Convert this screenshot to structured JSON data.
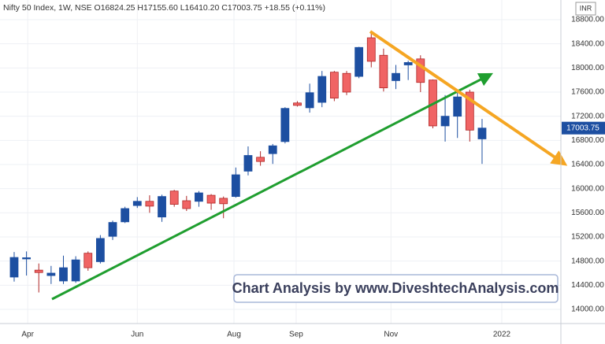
{
  "chart_data": {
    "type": "candlestick",
    "title": "Nifty 50 Index, 1W, NSE  O16824.25  H17155.60  L16410.20  C17003.75  +18.55 (+0.11%)",
    "currency": "INR",
    "annotation": "Chart Analysis by www.DiveshtechAnalysis.com",
    "up_color": "#1d4fa1",
    "down_color": "#f06464",
    "grid": true,
    "last_price": 17003.75,
    "x": [
      0,
      1,
      2,
      3,
      4,
      5,
      6,
      7,
      8,
      9,
      10,
      11,
      12,
      13,
      14,
      15,
      16,
      17,
      18,
      19,
      20,
      21,
      22,
      23,
      24,
      25,
      26,
      27,
      28,
      29,
      30,
      31,
      32,
      33,
      34,
      35,
      36,
      37,
      38
    ],
    "open": [
      14535,
      14850,
      14650,
      14560,
      14470,
      14470,
      14930,
      14790,
      15210,
      15450,
      15720,
      15790,
      15530,
      15960,
      15800,
      15790,
      15890,
      15840,
      15870,
      16290,
      16520,
      16580,
      16780,
      17420,
      17340,
      17430,
      17930,
      17910,
      17860,
      18500,
      18210,
      17790,
      18050,
      18150,
      17800,
      17040,
      17200,
      17600,
      16824.25
    ],
    "high": [
      14950,
      14960,
      14760,
      14720,
      14890,
      14880,
      14960,
      15230,
      15470,
      15700,
      15860,
      15890,
      15900,
      15980,
      15880,
      15960,
      15910,
      15870,
      16350,
      16700,
      16620,
      16740,
      17350,
      17450,
      17740,
      17950,
      17950,
      17950,
      18350,
      18600,
      18320,
      18050,
      18120,
      18210,
      17810,
      17550,
      17640,
      17640,
      17155.6
    ],
    "low": [
      14460,
      14560,
      14280,
      14420,
      14420,
      14440,
      14640,
      14760,
      15150,
      15430,
      15680,
      15600,
      15450,
      15700,
      15630,
      15700,
      15650,
      15510,
      15850,
      16220,
      16380,
      16410,
      16750,
      17360,
      17260,
      17350,
      17450,
      17550,
      17830,
      18010,
      17610,
      17650,
      17800,
      17600,
      17000,
      16780,
      16840,
      16780,
      16410.2
    ],
    "close": [
      14860,
      14855,
      14610,
      14600,
      14690,
      14820,
      14690,
      15175,
      15440,
      15670,
      15790,
      15710,
      15870,
      15740,
      15670,
      15930,
      15760,
      15750,
      16230,
      16550,
      16450,
      16710,
      17330,
      17380,
      17590,
      17860,
      17500,
      17600,
      18340,
      18110,
      17670,
      17910,
      18090,
      17760,
      17040,
      17200,
      17520,
      16970,
      17003.75
    ],
    "xlim": [
      -1.15,
      44.4
    ],
    "xticks": [
      {
        "value": 1.1,
        "label": "Apr"
      },
      {
        "value": 10.0,
        "label": "Jun"
      },
      {
        "value": 17.85,
        "label": "Aug"
      },
      {
        "value": 22.9,
        "label": "Sep"
      },
      {
        "value": 30.6,
        "label": "Nov"
      },
      {
        "value": 39.6,
        "label": "2022"
      }
    ],
    "ylim": [
      13765,
      19126
    ],
    "yticks": [
      {
        "value": 14000,
        "label": "14000.00"
      },
      {
        "value": 14400,
        "label": "14400.00"
      },
      {
        "value": 14800,
        "label": "14800.00"
      },
      {
        "value": 15200,
        "label": "15200.00"
      },
      {
        "value": 15600,
        "label": "15600.00"
      },
      {
        "value": 16000,
        "label": "16000.00"
      },
      {
        "value": 16400,
        "label": "16400.00"
      },
      {
        "value": 16800,
        "label": "16800.00"
      },
      {
        "value": 17200,
        "label": "17200.00"
      },
      {
        "value": 17600,
        "label": "17600.00"
      },
      {
        "value": 18000,
        "label": "18000.00"
      },
      {
        "value": 18400,
        "label": "18400.00"
      },
      {
        "value": 18800,
        "label": "18800.00"
      }
    ]
  }
}
